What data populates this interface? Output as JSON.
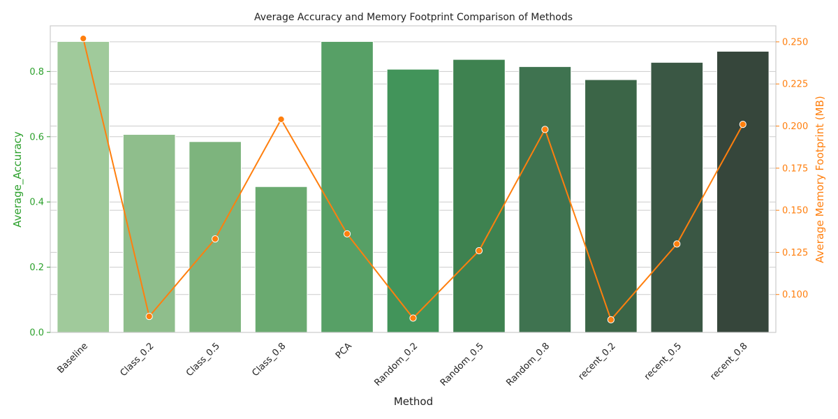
{
  "chart_data": {
    "type": "bar",
    "title": "Average Accuracy and Memory Footprint Comparison of Methods",
    "xlabel": "Method",
    "ylabel": "Average_Accuracy",
    "y2label": "Average Memory Footprint (MB)",
    "categories": [
      "Baseline",
      "Class_0.2",
      "Class_0.5",
      "Class_0.8",
      "PCA",
      "Random_0.2",
      "Random_0.5",
      "Random_0.8",
      "recent_0.2",
      "recent_0.5",
      "recent_0.8"
    ],
    "series": [
      {
        "type": "bar",
        "axis": "left",
        "values": [
          0.892,
          0.607,
          0.585,
          0.447,
          0.892,
          0.807,
          0.837,
          0.815,
          0.775,
          0.828,
          0.862
        ]
      },
      {
        "type": "line",
        "axis": "right",
        "values": [
          0.252,
          0.087,
          0.133,
          0.204,
          0.136,
          0.086,
          0.126,
          0.198,
          0.085,
          0.13,
          0.201
        ]
      }
    ],
    "ylim": [
      0,
      0.94
    ],
    "y2lim": [
      0.0775,
      0.2595
    ],
    "yticks": [
      "0.0",
      "0.2",
      "0.4",
      "0.6",
      "0.8"
    ],
    "y2ticks": [
      "0.100",
      "0.125",
      "0.150",
      "0.175",
      "0.200",
      "0.225",
      "0.250"
    ],
    "grid": true,
    "colors": {
      "bars": [
        "#a0ca9b",
        "#8fbe8c",
        "#7db47d",
        "#6aaa70",
        "#57a066",
        "#42945a",
        "#3e8250",
        "#3f7350",
        "#3b6547",
        "#3a5744",
        "#36463b"
      ],
      "line": "#ff7f0e",
      "left_axis": "#2ca02c",
      "right_axis": "#ff7f0e",
      "grid": "#cccccc",
      "spine": "#cccccc",
      "text": "#222222"
    }
  }
}
